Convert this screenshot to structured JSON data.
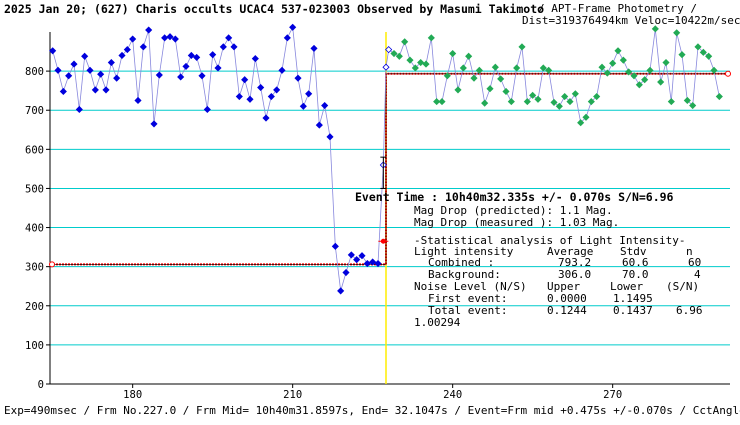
{
  "header": {
    "title": "2025 Jan 20; (627) Charis occults UCAC4 537-023003 Observed by Masumi Takimoto",
    "subtitle_line1": "/ APT-Frame Photometry /",
    "subtitle_line2": "Dist=319376494km Veloc=10422m/sec"
  },
  "footer": {
    "text": "Exp=490msec / Frm No.227.0 / Frm Mid= 10h40m31.8597s, End= 32.1047s / Event=Frm mid +0.475s +/-0.070s / CctAngle=0.0deg"
  },
  "annotations": {
    "event_time": "Event Time : 10h40m32.335s +/- 0.070s S/N=6.96",
    "mag_pred": "Mag Drop (predicted): 1.1 Mag.",
    "mag_meas": "Mag Drop (measured ): 1.03 Mag.",
    "stat_title": "-Statistical analysis of Light Intensity-",
    "hdr_col1": "Light intensity",
    "hdr_col2": "Average",
    "hdr_col3": "Stdv",
    "hdr_col4": "n",
    "row1_label": "Combined  :",
    "row1_avg": "793.2",
    "row1_std": "60.6",
    "row1_n": "60",
    "row2_label": "Background:",
    "row2_avg": "306.0",
    "row2_std": "70.0",
    "row2_n": "4",
    "noise_title": "Noise Level (N/S)",
    "noise_upper": "Upper",
    "noise_lower": "Lower",
    "noise_sn": "(S/N)",
    "first_label": "First event:",
    "first_upper": "0.0000",
    "first_lower": "1.1495",
    "total_label": "Total event:",
    "total_upper": "0.1244",
    "total_lower": "0.1437",
    "total_sn": "6.96",
    "ratio": "1.00294"
  },
  "colors": {
    "before_points": "#0000dd",
    "after_points": "#22aa55",
    "grid": "#00cccc",
    "event_marker": "#ffee00",
    "model": "#ff0000",
    "data_line": "#8888dd"
  },
  "chart_data": {
    "type": "scatter",
    "xlim": [
      164.5,
      292
    ],
    "ylim": [
      0,
      900
    ],
    "xticks": [
      180,
      210,
      240,
      270
    ],
    "yticks": [
      0,
      100,
      200,
      300,
      400,
      500,
      600,
      700,
      800
    ],
    "grid": true,
    "event_frame": 227.5,
    "model_levels": {
      "background": 306.0,
      "combined": 793.2
    },
    "event_point": {
      "x": 227.0,
      "y": 365
    },
    "before_points": [
      [
        165,
        852
      ],
      [
        166,
        802
      ],
      [
        167,
        748
      ],
      [
        168,
        788
      ],
      [
        169,
        818
      ],
      [
        170,
        702
      ],
      [
        171,
        838
      ],
      [
        172,
        802
      ],
      [
        173,
        752
      ],
      [
        174,
        792
      ],
      [
        175,
        752
      ],
      [
        176,
        822
      ],
      [
        177,
        782
      ],
      [
        178,
        840
      ],
      [
        179,
        855
      ],
      [
        180,
        882
      ],
      [
        181,
        725
      ],
      [
        182,
        862
      ],
      [
        183,
        905
      ],
      [
        184,
        665
      ],
      [
        185,
        790
      ],
      [
        186,
        885
      ],
      [
        187,
        888
      ],
      [
        188,
        882
      ],
      [
        189,
        785
      ],
      [
        190,
        812
      ],
      [
        191,
        840
      ],
      [
        192,
        835
      ],
      [
        193,
        788
      ],
      [
        194,
        702
      ],
      [
        195,
        842
      ],
      [
        196,
        808
      ],
      [
        197,
        862
      ],
      [
        198,
        885
      ],
      [
        199,
        862
      ],
      [
        200,
        735
      ],
      [
        201,
        778
      ],
      [
        202,
        728
      ],
      [
        203,
        832
      ],
      [
        204,
        758
      ],
      [
        205,
        680
      ],
      [
        206,
        735
      ],
      [
        207,
        752
      ],
      [
        208,
        802
      ],
      [
        209,
        885
      ],
      [
        210,
        912
      ],
      [
        211,
        782
      ],
      [
        212,
        710
      ],
      [
        213,
        742
      ],
      [
        214,
        858
      ],
      [
        215,
        662
      ],
      [
        216,
        712
      ],
      [
        217,
        632
      ],
      [
        218,
        352
      ],
      [
        219,
        238
      ],
      [
        220,
        285
      ],
      [
        221,
        330
      ],
      [
        222,
        318
      ],
      [
        223,
        328
      ],
      [
        224,
        308
      ],
      [
        225,
        312
      ],
      [
        226,
        308
      ]
    ],
    "after_points": [
      [
        229,
        845
      ],
      [
        230,
        838
      ],
      [
        231,
        875
      ],
      [
        232,
        828
      ],
      [
        233,
        808
      ],
      [
        234,
        822
      ],
      [
        235,
        818
      ],
      [
        236,
        885
      ],
      [
        237,
        722
      ],
      [
        238,
        722
      ],
      [
        239,
        788
      ],
      [
        240,
        845
      ],
      [
        241,
        752
      ],
      [
        242,
        808
      ],
      [
        243,
        838
      ],
      [
        244,
        782
      ],
      [
        245,
        802
      ],
      [
        246,
        718
      ],
      [
        247,
        755
      ],
      [
        248,
        810
      ],
      [
        249,
        780
      ],
      [
        250,
        748
      ],
      [
        251,
        722
      ],
      [
        252,
        808
      ],
      [
        253,
        862
      ],
      [
        254,
        722
      ],
      [
        255,
        738
      ],
      [
        256,
        728
      ],
      [
        257,
        808
      ],
      [
        258,
        802
      ],
      [
        259,
        720
      ],
      [
        260,
        710
      ],
      [
        261,
        735
      ],
      [
        262,
        722
      ],
      [
        263,
        742
      ],
      [
        264,
        668
      ],
      [
        265,
        682
      ],
      [
        266,
        722
      ],
      [
        267,
        735
      ],
      [
        268,
        810
      ],
      [
        269,
        795
      ],
      [
        270,
        820
      ],
      [
        271,
        852
      ],
      [
        272,
        828
      ],
      [
        273,
        798
      ],
      [
        274,
        788
      ],
      [
        275,
        765
      ],
      [
        276,
        778
      ],
      [
        277,
        802
      ],
      [
        278,
        908
      ],
      [
        279,
        772
      ],
      [
        280,
        822
      ],
      [
        281,
        722
      ],
      [
        282,
        898
      ],
      [
        283,
        842
      ],
      [
        284,
        725
      ],
      [
        285,
        712
      ],
      [
        286,
        862
      ],
      [
        287,
        848
      ],
      [
        288,
        838
      ],
      [
        289,
        802
      ],
      [
        290,
        735
      ]
    ],
    "near_event_points": [
      [
        227,
        560
      ],
      [
        227.5,
        810
      ],
      [
        228,
        855
      ]
    ]
  }
}
